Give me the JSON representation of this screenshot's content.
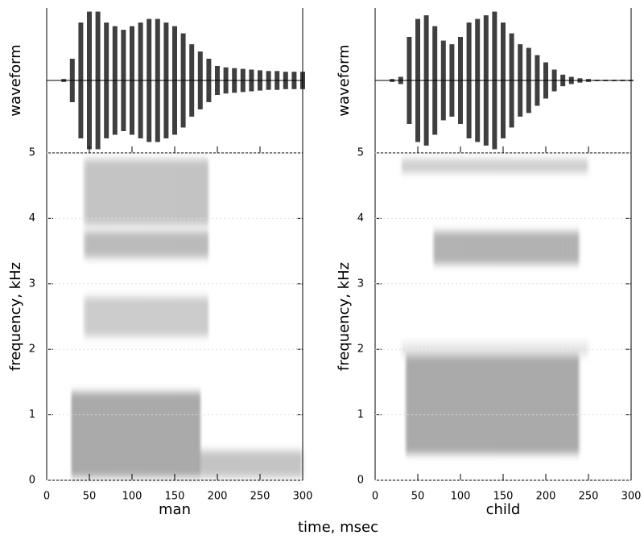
{
  "xlabel": "time,  msec",
  "chart_data": [
    {
      "type": "spectrogram",
      "title": "man",
      "ylabel": "frequency,  kHz",
      "waveform_label": "waveform",
      "xlim": [
        0,
        300
      ],
      "xticks": [
        0,
        50,
        100,
        150,
        200,
        250,
        300
      ],
      "ylim": [
        0,
        5
      ],
      "yticks": [
        0,
        1,
        2,
        3,
        4,
        5
      ],
      "waveform": {
        "ylim": [
          -1,
          1
        ],
        "x": [
          0,
          10,
          20,
          30,
          40,
          50,
          60,
          70,
          80,
          90,
          100,
          110,
          120,
          130,
          140,
          150,
          160,
          170,
          180,
          190,
          200,
          210,
          220,
          230,
          240,
          250,
          260,
          270,
          280,
          290,
          300
        ],
        "values": [
          0,
          0,
          0.02,
          0.3,
          0.8,
          0.95,
          0.95,
          0.8,
          0.75,
          0.7,
          0.75,
          0.8,
          0.85,
          0.85,
          0.8,
          0.75,
          0.65,
          0.5,
          0.4,
          0.3,
          0.2,
          0.18,
          0.17,
          0.16,
          0.15,
          0.14,
          0.13,
          0.13,
          0.12,
          0.12,
          0.12
        ]
      },
      "bands": [
        {
          "t": [
            30,
            180
          ],
          "f": [
            0.05,
            1.35
          ],
          "level": 1
        },
        {
          "t": [
            180,
            300
          ],
          "f": [
            0.05,
            0.45
          ],
          "level": 0.7
        },
        {
          "t": [
            45,
            190
          ],
          "f": [
            2.2,
            2.8
          ],
          "level": 0.6
        },
        {
          "t": [
            45,
            190
          ],
          "f": [
            3.4,
            3.8
          ],
          "level": 0.8
        },
        {
          "t": [
            45,
            190
          ],
          "f": [
            3.9,
            4.9
          ],
          "level": 0.7
        }
      ]
    },
    {
      "type": "spectrogram",
      "title": "child",
      "ylabel": "frequency,  kHz",
      "waveform_label": "waveform",
      "xlim": [
        0,
        300
      ],
      "xticks": [
        0,
        50,
        100,
        150,
        200,
        250,
        300
      ],
      "ylim": [
        0,
        5
      ],
      "yticks": [
        0,
        1,
        2,
        3,
        4,
        5
      ],
      "waveform": {
        "ylim": [
          -1,
          1
        ],
        "x": [
          0,
          10,
          20,
          30,
          40,
          50,
          60,
          70,
          80,
          90,
          100,
          110,
          120,
          130,
          140,
          150,
          160,
          170,
          180,
          190,
          200,
          210,
          220,
          230,
          240,
          250,
          260,
          270,
          280,
          290,
          300
        ],
        "values": [
          0,
          0,
          0.02,
          0.05,
          0.6,
          0.85,
          0.9,
          0.75,
          0.55,
          0.5,
          0.6,
          0.8,
          0.85,
          0.9,
          0.95,
          0.8,
          0.65,
          0.5,
          0.45,
          0.35,
          0.25,
          0.15,
          0.08,
          0.05,
          0.03,
          0.02,
          0.01,
          0.01,
          0.01,
          0.01,
          0.01
        ]
      },
      "bands": [
        {
          "t": [
            35,
            240
          ],
          "f": [
            0.4,
            1.9
          ],
          "level": 1
        },
        {
          "t": [
            70,
            240
          ],
          "f": [
            3.3,
            3.8
          ],
          "level": 0.9
        },
        {
          "t": [
            30,
            250
          ],
          "f": [
            4.7,
            4.9
          ],
          "level": 0.6
        },
        {
          "t": [
            30,
            250
          ],
          "f": [
            1.9,
            2.1
          ],
          "level": 0.3
        }
      ]
    }
  ]
}
